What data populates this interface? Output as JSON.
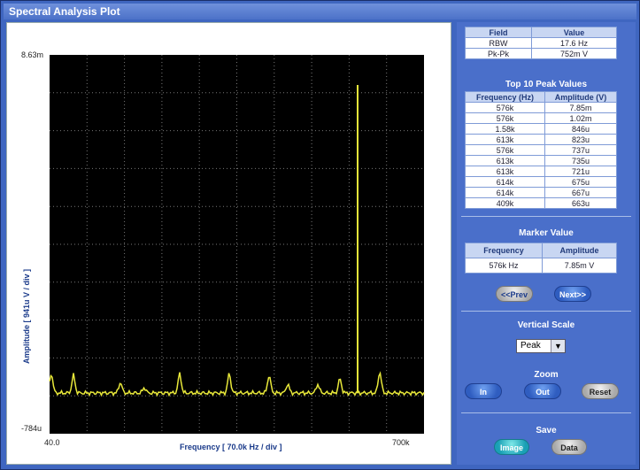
{
  "window": {
    "title": "Spectral Analysis Plot"
  },
  "plot": {
    "y_top_label": "8.63m",
    "y_bottom_label": "-784u",
    "x_left_label": "40.0",
    "x_right_label": "700k",
    "y_axis_title": "Amplitude  [ 941u V / div ]",
    "x_axis_title": "Frequency  [ 70.0k Hz / div ]",
    "trace_color": "#e8e83a"
  },
  "field_table": {
    "headers": [
      "Field",
      "Value"
    ],
    "rows": [
      [
        "RBW",
        "17.6 Hz"
      ],
      [
        "Pk-Pk",
        "752m V"
      ]
    ]
  },
  "peaks": {
    "title": "Top 10 Peak Values",
    "headers": [
      "Frequency (Hz)",
      "Amplitude (V)"
    ],
    "rows": [
      [
        "576k",
        "7.85m"
      ],
      [
        "576k",
        "1.02m"
      ],
      [
        "1.58k",
        "846u"
      ],
      [
        "613k",
        "823u"
      ],
      [
        "576k",
        "737u"
      ],
      [
        "613k",
        "735u"
      ],
      [
        "613k",
        "721u"
      ],
      [
        "614k",
        "675u"
      ],
      [
        "614k",
        "667u"
      ],
      [
        "409k",
        "663u"
      ]
    ]
  },
  "marker": {
    "title": "Marker Value",
    "headers": [
      "Frequency",
      "Amplitude"
    ],
    "row": [
      "576k Hz",
      "7.85m V"
    ],
    "prev_label": "<<Prev",
    "next_label": "Next>>"
  },
  "vertical_scale": {
    "title": "Vertical Scale",
    "selected": "Peak"
  },
  "zoom": {
    "title": "Zoom",
    "in_label": "In",
    "out_label": "Out",
    "reset_label": "Reset"
  },
  "save": {
    "title": "Save",
    "image_label": "Image",
    "data_label": "Data"
  }
}
